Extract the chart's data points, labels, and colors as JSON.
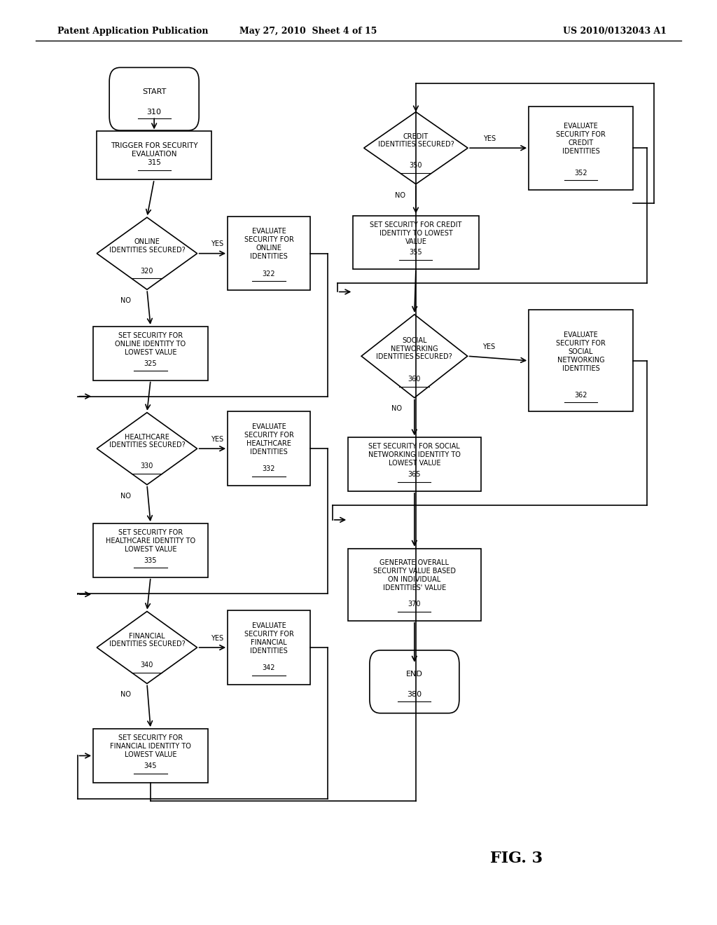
{
  "bg_color": "#ffffff",
  "header_left": "Patent Application Publication",
  "header_center": "May 27, 2010  Sheet 4 of 15",
  "header_right": "US 2010/0132043 A1",
  "fig_label": "FIG. 3"
}
